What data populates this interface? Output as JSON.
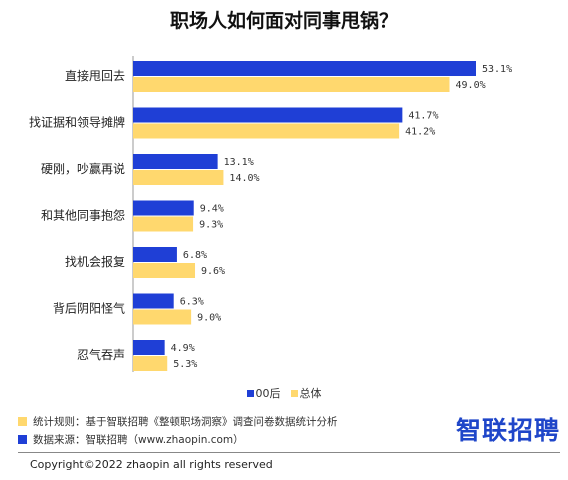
{
  "chart_data": {
    "type": "bar",
    "orientation": "horizontal",
    "title": "职场人如何面对同事甩锅？",
    "categories": [
      "直接甩回去",
      "找证据和领导摊牌",
      "硬刚，吵赢再说",
      "和其他同事抱怨",
      "找机会报复",
      "背后阴阳怪气",
      "忍气吞声"
    ],
    "series": [
      {
        "name": "00后",
        "color": "#1f3fd6",
        "values": [
          53.1,
          41.7,
          13.1,
          9.4,
          6.8,
          6.3,
          4.9
        ],
        "labels": [
          "53.1%",
          "41.7%",
          "13.1%",
          "9.4%",
          "6.8%",
          "6.3%",
          "4.9%"
        ]
      },
      {
        "name": "总体",
        "color": "#ffd86e",
        "values": [
          49.0,
          41.2,
          14.0,
          9.3,
          9.6,
          9.0,
          5.3
        ],
        "labels": [
          "49.0%",
          "41.2%",
          "14.0%",
          "9.3%",
          "9.6%",
          "9.0%",
          "5.3%"
        ]
      }
    ],
    "xlim": [
      0,
      53.1
    ],
    "grid": false,
    "legend": "bottom"
  },
  "notes": {
    "rule": "统计规则：基于智联招聘《整顿职场洞察》调查问卷数据统计分析",
    "source": "数据来源：智联招聘（www.zhaopin.com）"
  },
  "logo": "智联招聘",
  "copyright": "Copyright©2022 zhaopin all rights reserved"
}
